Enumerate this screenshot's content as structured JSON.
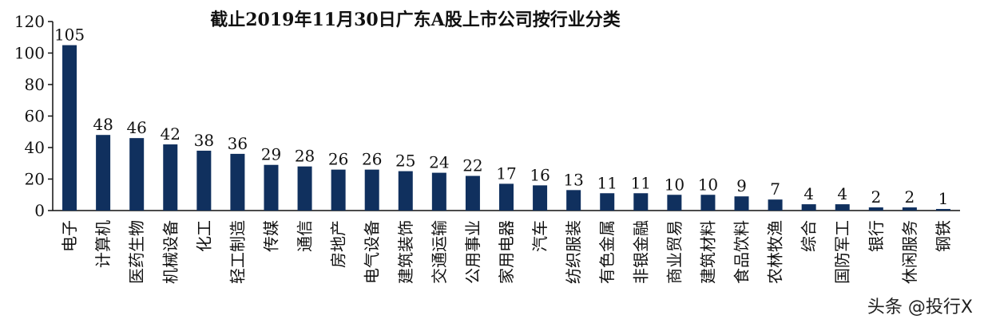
{
  "chart_data": {
    "type": "bar",
    "title": "截止2019年11月30日广东A股上市公司按行业分类",
    "categories": [
      "电子",
      "计算机",
      "医药生物",
      "机械设备",
      "化工",
      "轻工制造",
      "传媒",
      "通信",
      "房地产",
      "电气设备",
      "建筑装饰",
      "交通运输",
      "公用事业",
      "家用电器",
      "汽车",
      "纺织服装",
      "有色金属",
      "非银金融",
      "商业贸易",
      "建筑材料",
      "食品饮料",
      "农林牧渔",
      "综合",
      "国防军工",
      "银行",
      "休闲服务",
      "钢铁"
    ],
    "values": [
      105,
      48,
      46,
      42,
      38,
      36,
      29,
      28,
      26,
      26,
      25,
      24,
      22,
      17,
      16,
      13,
      11,
      11,
      10,
      10,
      9,
      7,
      4,
      4,
      2,
      2,
      1
    ],
    "ylim": [
      0,
      120
    ],
    "yticks": [
      0,
      20,
      40,
      60,
      80,
      100,
      120
    ],
    "bar_color": "#10305e",
    "grid": false,
    "legend": "none"
  },
  "watermark": "头条 @投行X"
}
